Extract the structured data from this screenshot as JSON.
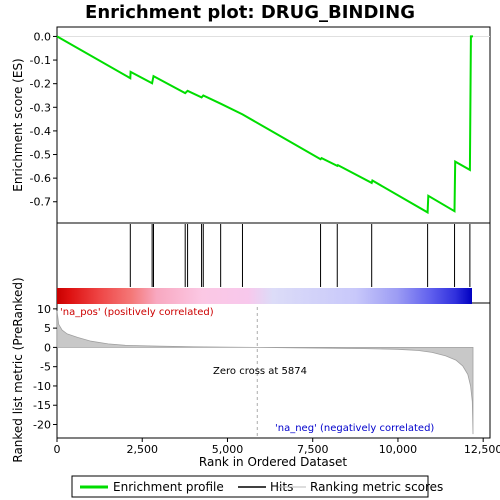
{
  "title": "Enrichment plot: DRUG_BINDING",
  "chart_data": [
    {
      "type": "line",
      "panel": "enrichment",
      "ylabel": "Enrichment score (ES)",
      "ylim": [
        -0.79,
        0.04
      ],
      "yticks": [
        0.0,
        -0.1,
        -0.2,
        -0.3,
        -0.4,
        -0.5,
        -0.6,
        -0.7
      ],
      "ytick_labels": [
        "0.0",
        "-0.1",
        "-0.2",
        "-0.3",
        "-0.4",
        "-0.5",
        "-0.6",
        "-0.7"
      ],
      "series": [
        {
          "name": "Enrichment profile",
          "color": "#00dd00",
          "points": [
            [
              0,
              0.0
            ],
            [
              2150,
              -0.177
            ],
            [
              2160,
              -0.15
            ],
            [
              2790,
              -0.198
            ],
            [
              2830,
              -0.168
            ],
            [
              3760,
              -0.24
            ],
            [
              3830,
              -0.23
            ],
            [
              4240,
              -0.258
            ],
            [
              4290,
              -0.25
            ],
            [
              4800,
              -0.285
            ],
            [
              5440,
              -0.33
            ],
            [
              7730,
              -0.52
            ],
            [
              7760,
              -0.515
            ],
            [
              8220,
              -0.548
            ],
            [
              8240,
              -0.545
            ],
            [
              9230,
              -0.62
            ],
            [
              9250,
              -0.61
            ],
            [
              10870,
              -0.745
            ],
            [
              10890,
              -0.675
            ],
            [
              11660,
              -0.74
            ],
            [
              11680,
              -0.53
            ],
            [
              12110,
              -0.565
            ],
            [
              12140,
              0.0
            ],
            [
              12200,
              0.0
            ]
          ]
        }
      ]
    },
    {
      "type": "hits",
      "panel": "hits",
      "legend_label": "Hits",
      "hit_positions": [
        2150,
        2790,
        2830,
        3760,
        3830,
        4240,
        4290,
        4800,
        5440,
        7730,
        8220,
        9230,
        10870,
        11660,
        12110
      ]
    },
    {
      "type": "area",
      "panel": "ranked_metric",
      "ylabel": "Ranked list metric (PreRanked)",
      "xlabel": "Rank in Ordered Dataset",
      "xlim": [
        0,
        12700
      ],
      "ylim": [
        -23.5,
        11
      ],
      "xticks": [
        0,
        2500,
        5000,
        7500,
        10000,
        12500
      ],
      "xtick_labels": [
        "0",
        "2,500",
        "5,000",
        "7,500",
        "10,000",
        "12,500"
      ],
      "yticks": [
        10,
        5,
        0,
        -5,
        -10,
        -15,
        -20
      ],
      "ytick_labels": [
        "10",
        "5",
        "0",
        "-5",
        "-10",
        "-15",
        "-20"
      ],
      "legend_label": "Ranking metric scores",
      "points": [
        [
          0,
          9.5
        ],
        [
          50,
          6.0
        ],
        [
          150,
          4.5
        ],
        [
          300,
          3.5
        ],
        [
          600,
          2.6
        ],
        [
          1000,
          1.6
        ],
        [
          1500,
          0.9
        ],
        [
          2000,
          0.55
        ],
        [
          3000,
          0.3
        ],
        [
          4000,
          0.15
        ],
        [
          5000,
          0.07
        ],
        [
          5874,
          0.0
        ],
        [
          7000,
          -0.1
        ],
        [
          8000,
          -0.2
        ],
        [
          9000,
          -0.3
        ],
        [
          10000,
          -0.5
        ],
        [
          10600,
          -0.8
        ],
        [
          11000,
          -1.3
        ],
        [
          11400,
          -2.2
        ],
        [
          11700,
          -3.3
        ],
        [
          11900,
          -4.8
        ],
        [
          12050,
          -7.0
        ],
        [
          12130,
          -10.0
        ],
        [
          12180,
          -14.0
        ],
        [
          12200,
          -22.5
        ]
      ],
      "zero_cross": 5874,
      "annotations": {
        "pos": "'na_pos' (positively correlated)",
        "neg": "'na_neg' (negatively correlated)",
        "zero": "Zero cross at 5874"
      },
      "annotation_colors": {
        "pos": "#cc0000",
        "neg": "#0000cc",
        "zero": "#000000"
      }
    }
  ],
  "legend": {
    "items": [
      {
        "label": "Enrichment profile",
        "color": "#00dd00"
      },
      {
        "label": "Hits",
        "color": "#000000"
      },
      {
        "label": "Ranking metric scores",
        "color": "#bbbbbb"
      }
    ]
  }
}
